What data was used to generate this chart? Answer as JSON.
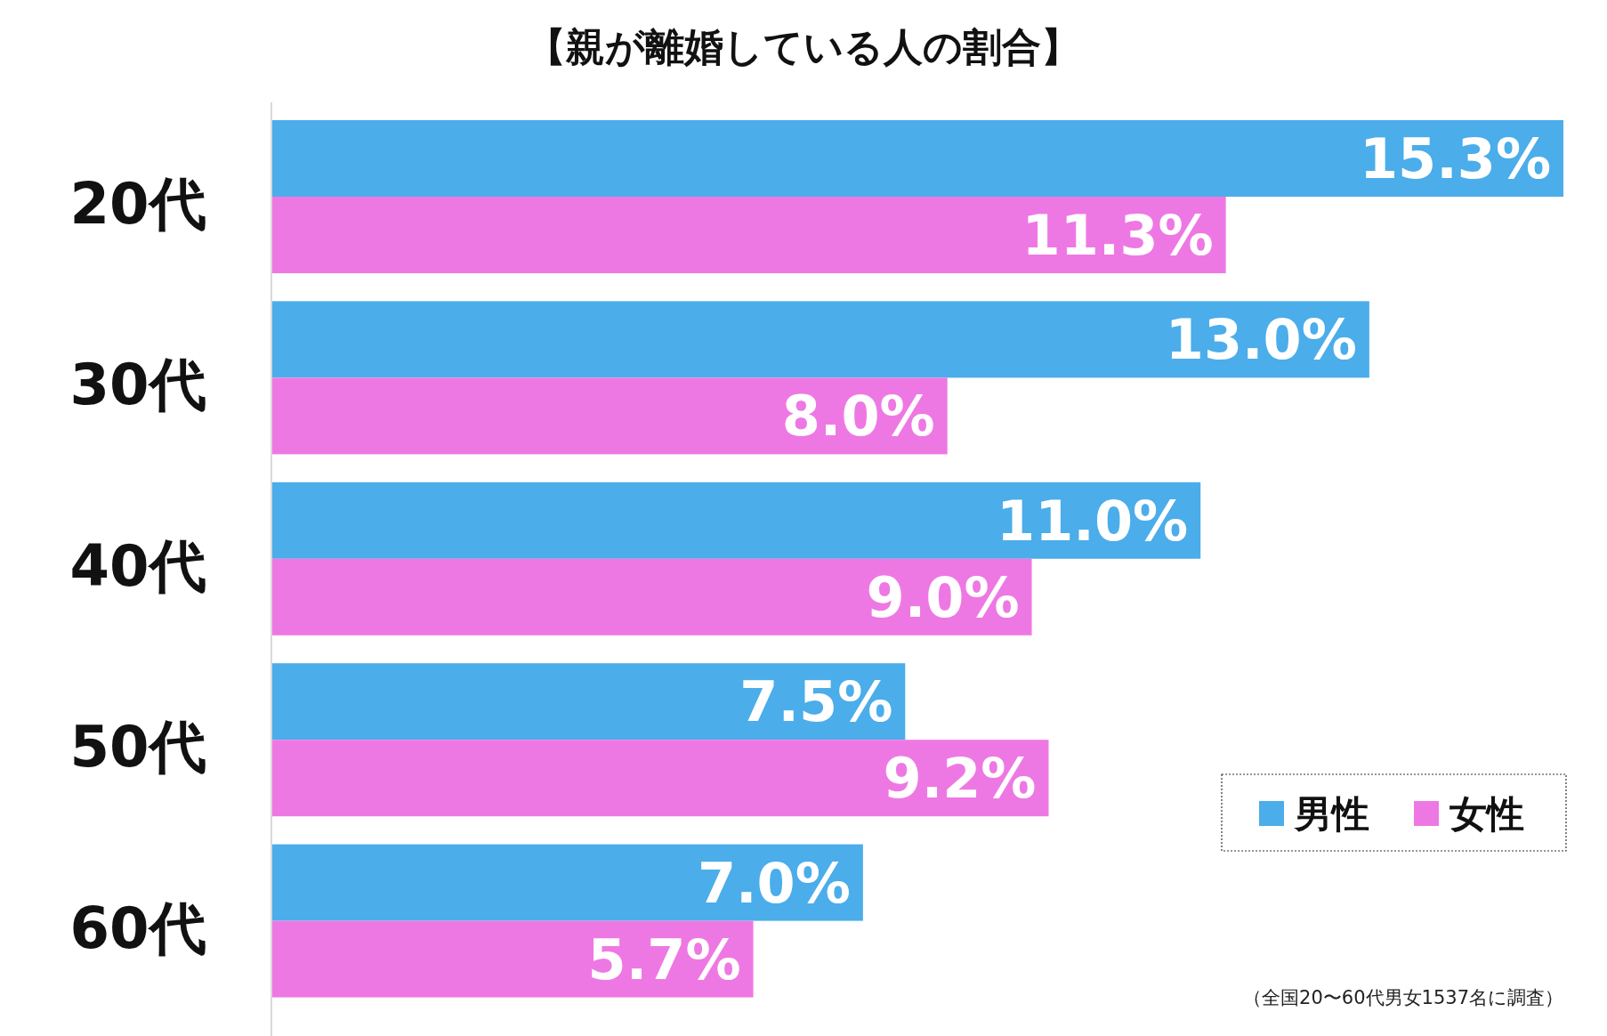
{
  "chart_data": {
    "type": "bar",
    "orientation": "horizontal",
    "title": "【親が離婚している人の割合】",
    "categories": [
      "20代",
      "30代",
      "40代",
      "50代",
      "60代"
    ],
    "series": [
      {
        "name": "男性",
        "color": "#4badea",
        "values": [
          15.3,
          13.0,
          11.0,
          7.5,
          7.0
        ],
        "value_labels": [
          "15.3%",
          "13.0%",
          "11.0%",
          "7.5%",
          "7.0%"
        ]
      },
      {
        "name": "女性",
        "color": "#ee78e3",
        "values": [
          11.3,
          8.0,
          9.0,
          9.2,
          5.7
        ],
        "value_labels": [
          "11.3%",
          "8.0%",
          "9.0%",
          "9.2%",
          "5.7%"
        ]
      }
    ],
    "legend": "bottom right",
    "annotations": [
      "（全国20〜60代男女1537名に調査）"
    ]
  }
}
